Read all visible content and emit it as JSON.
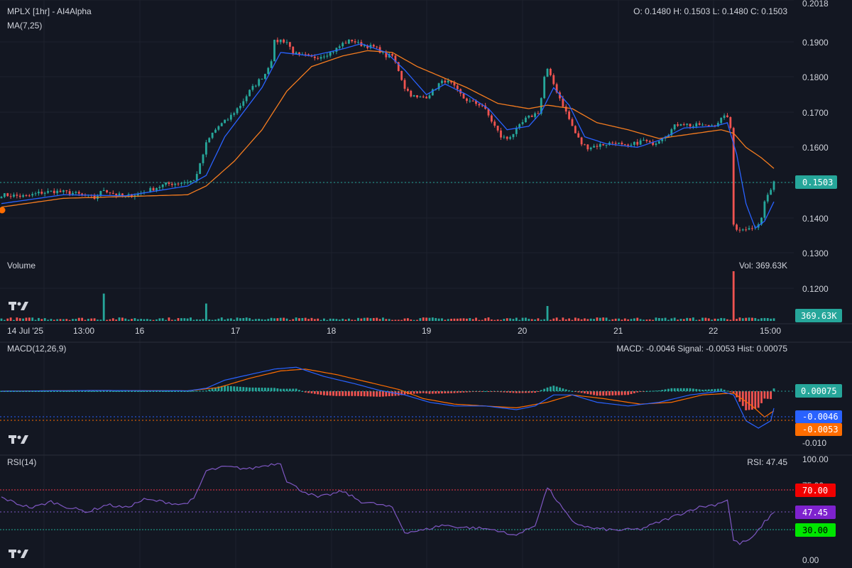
{
  "header": {
    "title": "MPLX [1hr] - AI4Alpha",
    "ma_label": "MA(7,25)",
    "ohlc": "O: 0.1480 H: 0.1503 L: 0.1480 C: 0.1503"
  },
  "volume": {
    "label": "Volume",
    "readout": "Vol: 369.63K",
    "badge": "369.63K"
  },
  "macd": {
    "label": "MACD(12,26,9)",
    "readout": "MACD: -0.0046 Signal: -0.0053 Hist: 0.00075",
    "badges": {
      "hist": "0.00075",
      "macd": "-0.0046",
      "signal": "-0.0053"
    },
    "axis_label": "-0.010"
  },
  "rsi": {
    "label": "RSI(14)",
    "readout": "RSI: 47.45",
    "badges": {
      "upper": "70.00",
      "value": "47.45",
      "lower": "30.00"
    },
    "axis_labels": [
      "100.00",
      "75.00",
      "25.00",
      "0.00"
    ]
  },
  "price_axis_labels": [
    "0.2018",
    "0.1900",
    "0.1800",
    "0.1700",
    "0.1600",
    "0.1400",
    "0.1300",
    "0.1200"
  ],
  "last_price_badge": "0.1503",
  "time_axis_labels": [
    "14 Jul '25",
    "13:00",
    "16",
    "17",
    "18",
    "19",
    "20",
    "21",
    "22",
    "15:00"
  ],
  "colors": {
    "background": "#131722",
    "up": "#26a69a",
    "down": "#ef5350",
    "ma7": "#2962ff",
    "ma25": "#f57c1f",
    "rsi": "#7e57c2",
    "rsi_upper": "#f23645",
    "rsi_lower": "#22ab94",
    "macd_line": "#2962ff",
    "signal_line": "#ff6d00"
  },
  "chart_data": [
    {
      "type": "candlestick",
      "title": "MPLX [1hr] - AI4Alpha",
      "x_labels": [
        "14 Jul '25",
        "13:00",
        "16",
        "17",
        "18",
        "19",
        "20",
        "21",
        "22",
        "15:00"
      ],
      "ylim": [
        0.13,
        0.2018
      ],
      "last_close": 0.1503,
      "last_ohlc": {
        "open": 0.148,
        "high": 0.1503,
        "low": 0.148,
        "close": 0.1503
      },
      "close_path": [
        [
          0,
          0.1465
        ],
        [
          8,
          0.146
        ],
        [
          12,
          0.147
        ],
        [
          17,
          0.1475
        ],
        [
          23,
          0.147
        ],
        [
          27,
          0.1462
        ],
        [
          30,
          0.1455
        ],
        [
          33,
          0.148
        ],
        [
          37,
          0.1465
        ],
        [
          40,
          0.146
        ],
        [
          45,
          0.147
        ],
        [
          53,
          0.1495
        ],
        [
          58,
          0.15
        ],
        [
          62,
          0.1505
        ],
        [
          64,
          0.155
        ],
        [
          66,
          0.161
        ],
        [
          68,
          0.164
        ],
        [
          70,
          0.166
        ],
        [
          73,
          0.168
        ],
        [
          75,
          0.17
        ],
        [
          77,
          0.172
        ],
        [
          80,
          0.176
        ],
        [
          83,
          0.179
        ],
        [
          85,
          0.181
        ],
        [
          87,
          0.185
        ],
        [
          88,
          0.19
        ],
        [
          90,
          0.1905
        ],
        [
          92,
          0.19
        ],
        [
          94,
          0.187
        ],
        [
          96,
          0.186
        ],
        [
          98,
          0.186
        ],
        [
          100,
          0.1855
        ],
        [
          103,
          0.186
        ],
        [
          106,
          0.187
        ],
        [
          108,
          0.188
        ],
        [
          110,
          0.1895
        ],
        [
          113,
          0.1905
        ],
        [
          115,
          0.1895
        ],
        [
          117,
          0.189
        ],
        [
          120,
          0.1885
        ],
        [
          122,
          0.1875
        ],
        [
          124,
          0.186
        ],
        [
          126,
          0.186
        ],
        [
          128,
          0.182
        ],
        [
          130,
          0.177
        ],
        [
          132,
          0.175
        ],
        [
          134,
          0.174
        ],
        [
          137,
          0.1745
        ],
        [
          139,
          0.176
        ],
        [
          141,
          0.178
        ],
        [
          143,
          0.179
        ],
        [
          145,
          0.178
        ],
        [
          147,
          0.176
        ],
        [
          149,
          0.174
        ],
        [
          151,
          0.173
        ],
        [
          153,
          0.1725
        ],
        [
          155,
          0.172
        ],
        [
          157,
          0.169
        ],
        [
          159,
          0.166
        ],
        [
          161,
          0.163
        ],
        [
          163,
          0.1625
        ],
        [
          165,
          0.164
        ],
        [
          167,
          0.166
        ],
        [
          169,
          0.168
        ],
        [
          171,
          0.169
        ],
        [
          173,
          0.17
        ],
        [
          174,
          0.174
        ],
        [
          175,
          0.18
        ],
        [
          176,
          0.182
        ],
        [
          177,
          0.18
        ],
        [
          179,
          0.176
        ],
        [
          181,
          0.172
        ],
        [
          183,
          0.168
        ],
        [
          185,
          0.164
        ],
        [
          187,
          0.161
        ],
        [
          189,
          0.16
        ],
        [
          192,
          0.1605
        ],
        [
          195,
          0.161
        ],
        [
          198,
          0.1615
        ],
        [
          200,
          0.1605
        ],
        [
          202,
          0.16
        ],
        [
          204,
          0.161
        ],
        [
          207,
          0.162
        ],
        [
          209,
          0.161
        ],
        [
          211,
          0.1615
        ],
        [
          213,
          0.163
        ],
        [
          215,
          0.164
        ],
        [
          217,
          0.166
        ],
        [
          219,
          0.167
        ],
        [
          221,
          0.1665
        ],
        [
          223,
          0.166
        ],
        [
          225,
          0.1665
        ],
        [
          227,
          0.166
        ],
        [
          230,
          0.1665
        ],
        [
          232,
          0.168
        ],
        [
          234,
          0.169
        ],
        [
          235,
          0.165
        ],
        [
          236,
          0.138
        ],
        [
          237,
          0.137
        ],
        [
          239,
          0.1365
        ],
        [
          241,
          0.1375
        ],
        [
          243,
          0.137
        ],
        [
          244,
          0.138
        ],
        [
          245,
          0.14
        ],
        [
          246,
          0.144
        ],
        [
          247,
          0.147
        ],
        [
          248,
          0.148
        ],
        [
          249,
          0.1503
        ]
      ]
    },
    {
      "type": "line",
      "title": "MA(7,25)",
      "series": [
        {
          "name": "MA7",
          "values": [
            [
              0,
              0.144
            ],
            [
              20,
              0.1465
            ],
            [
              40,
              0.1462
            ],
            [
              60,
              0.149
            ],
            [
              66,
              0.152
            ],
            [
              72,
              0.163
            ],
            [
              78,
              0.17
            ],
            [
              84,
              0.177
            ],
            [
              90,
              0.187
            ],
            [
              100,
              0.186
            ],
            [
              110,
              0.188
            ],
            [
              116,
              0.1895
            ],
            [
              124,
              0.187
            ],
            [
              130,
              0.182
            ],
            [
              137,
              0.175
            ],
            [
              143,
              0.178
            ],
            [
              150,
              0.175
            ],
            [
              157,
              0.171
            ],
            [
              163,
              0.165
            ],
            [
              170,
              0.166
            ],
            [
              174,
              0.17
            ],
            [
              178,
              0.177
            ],
            [
              183,
              0.172
            ],
            [
              188,
              0.163
            ],
            [
              195,
              0.161
            ],
            [
              205,
              0.16
            ],
            [
              212,
              0.162
            ],
            [
              220,
              0.1655
            ],
            [
              230,
              0.166
            ],
            [
              234,
              0.167
            ],
            [
              237,
              0.158
            ],
            [
              240,
              0.144
            ],
            [
              243,
              0.137
            ],
            [
              246,
              0.139
            ],
            [
              249,
              0.1445
            ]
          ]
        },
        {
          "name": "MA25",
          "values": [
            [
              0,
              0.143
            ],
            [
              20,
              0.1455
            ],
            [
              40,
              0.146
            ],
            [
              60,
              0.1465
            ],
            [
              66,
              0.149
            ],
            [
              75,
              0.156
            ],
            [
              84,
              0.165
            ],
            [
              92,
              0.176
            ],
            [
              100,
              0.183
            ],
            [
              110,
              0.186
            ],
            [
              118,
              0.1875
            ],
            [
              126,
              0.187
            ],
            [
              134,
              0.183
            ],
            [
              142,
              0.18
            ],
            [
              150,
              0.177
            ],
            [
              160,
              0.1725
            ],
            [
              170,
              0.171
            ],
            [
              176,
              0.172
            ],
            [
              184,
              0.171
            ],
            [
              192,
              0.167
            ],
            [
              202,
              0.165
            ],
            [
              212,
              0.1625
            ],
            [
              220,
              0.1635
            ],
            [
              232,
              0.165
            ],
            [
              236,
              0.164
            ],
            [
              240,
              0.16
            ],
            [
              245,
              0.157
            ],
            [
              249,
              0.154
            ]
          ]
        }
      ]
    },
    {
      "type": "bar",
      "title": "Volume",
      "last_volume": "369.63K",
      "spikes": [
        [
          33,
          0.55
        ],
        [
          66,
          0.35
        ],
        [
          176,
          0.3
        ],
        [
          236,
          1.0
        ]
      ],
      "base_level": 0.06
    },
    {
      "type": "line",
      "title": "MACD(12,26,9)",
      "macd": -0.0046,
      "signal": -0.0053,
      "hist": 0.00075,
      "ylim": [
        -0.012,
        0.01
      ],
      "series": [
        {
          "name": "MACD",
          "values": [
            [
              0,
              0.0
            ],
            [
              30,
              0.0002
            ],
            [
              60,
              0.0001
            ],
            [
              66,
              0.0008
            ],
            [
              72,
              0.003
            ],
            [
              80,
              0.0045
            ],
            [
              88,
              0.006
            ],
            [
              95,
              0.0065
            ],
            [
              104,
              0.004
            ],
            [
              114,
              0.002
            ],
            [
              122,
              0.0002
            ],
            [
              130,
              -0.001
            ],
            [
              138,
              -0.003
            ],
            [
              146,
              -0.004
            ],
            [
              156,
              -0.004
            ],
            [
              166,
              -0.005
            ],
            [
              172,
              -0.004
            ],
            [
              178,
              -0.001
            ],
            [
              184,
              -0.001
            ],
            [
              192,
              -0.003
            ],
            [
              202,
              -0.004
            ],
            [
              212,
              -0.003
            ],
            [
              222,
              -0.001
            ],
            [
              232,
              0.0
            ],
            [
              236,
              -0.001
            ],
            [
              240,
              -0.008
            ],
            [
              244,
              -0.01
            ],
            [
              248,
              -0.008
            ],
            [
              249,
              -0.0046
            ]
          ]
        },
        {
          "name": "Signal",
          "values": [
            [
              0,
              0.0
            ],
            [
              30,
              0.0002
            ],
            [
              60,
              0.0001
            ],
            [
              70,
              0.001
            ],
            [
              80,
              0.0035
            ],
            [
              90,
              0.0055
            ],
            [
              98,
              0.006
            ],
            [
              108,
              0.0045
            ],
            [
              118,
              0.0025
            ],
            [
              128,
              0.0005
            ],
            [
              136,
              -0.002
            ],
            [
              146,
              -0.0035
            ],
            [
              156,
              -0.004
            ],
            [
              166,
              -0.0045
            ],
            [
              176,
              -0.003
            ],
            [
              184,
              -0.001
            ],
            [
              194,
              -0.002
            ],
            [
              206,
              -0.0035
            ],
            [
              216,
              -0.003
            ],
            [
              226,
              -0.001
            ],
            [
              236,
              -0.0005
            ],
            [
              242,
              -0.004
            ],
            [
              246,
              -0.007
            ],
            [
              249,
              -0.0053
            ]
          ]
        }
      ]
    },
    {
      "type": "line",
      "title": "RSI(14)",
      "ylim": [
        0,
        100
      ],
      "overbought": 70,
      "oversold": 30,
      "last": 47.45,
      "series": [
        {
          "name": "RSI",
          "values": [
            [
              0,
              62
            ],
            [
              6,
              55
            ],
            [
              10,
              52
            ],
            [
              16,
              58
            ],
            [
              22,
              52
            ],
            [
              28,
              48
            ],
            [
              34,
              55
            ],
            [
              40,
              52
            ],
            [
              46,
              60
            ],
            [
              52,
              58
            ],
            [
              58,
              55
            ],
            [
              62,
              60
            ],
            [
              66,
              88
            ],
            [
              72,
              92
            ],
            [
              80,
              90
            ],
            [
              86,
              94
            ],
            [
              90,
              96
            ],
            [
              92,
              78
            ],
            [
              96,
              70
            ],
            [
              102,
              62
            ],
            [
              110,
              68
            ],
            [
              116,
              58
            ],
            [
              122,
              55
            ],
            [
              126,
              52
            ],
            [
              130,
              28
            ],
            [
              136,
              30
            ],
            [
              142,
              35
            ],
            [
              148,
              33
            ],
            [
              154,
              32
            ],
            [
              160,
              30
            ],
            [
              164,
              25
            ],
            [
              168,
              28
            ],
            [
              172,
              35
            ],
            [
              176,
              72
            ],
            [
              180,
              55
            ],
            [
              184,
              38
            ],
            [
              190,
              32
            ],
            [
              198,
              30
            ],
            [
              206,
              31
            ],
            [
              212,
              38
            ],
            [
              218,
              45
            ],
            [
              224,
              52
            ],
            [
              230,
              55
            ],
            [
              234,
              60
            ],
            [
              236,
              20
            ],
            [
              238,
              17
            ],
            [
              242,
              22
            ],
            [
              246,
              38
            ],
            [
              249,
              47.45
            ]
          ]
        }
      ]
    }
  ]
}
